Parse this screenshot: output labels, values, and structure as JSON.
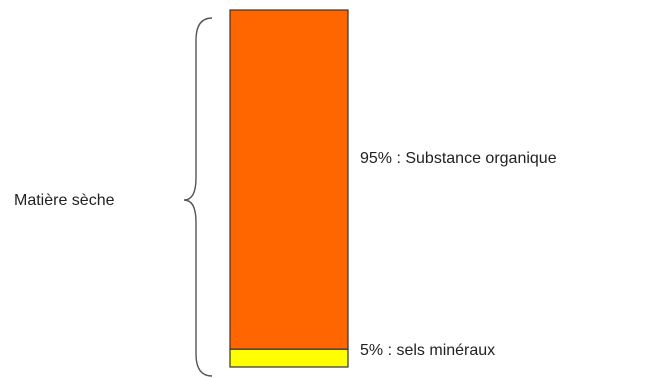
{
  "chart_data": {
    "type": "bar",
    "orientation": "stacked-vertical",
    "group_label": "Matière sèche",
    "series": [
      {
        "name": "sels minéraux",
        "value": 5,
        "label": "5% : sels minéraux",
        "color": "#ffff00"
      },
      {
        "name": "Substance organique",
        "value": 95,
        "label": "95% : Substance organique",
        "color": "#ff6600"
      }
    ],
    "ylim": [
      0,
      100
    ],
    "unit": "%"
  }
}
